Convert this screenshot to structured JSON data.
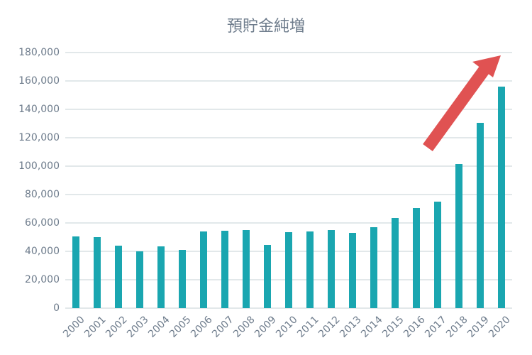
{
  "chart_data": {
    "type": "bar",
    "title": "預貯金純増",
    "categories": [
      "2000",
      "2001",
      "2002",
      "2003",
      "2004",
      "2005",
      "2006",
      "2007",
      "2008",
      "2009",
      "2010",
      "2011",
      "2012",
      "2013",
      "2014",
      "2015",
      "2016",
      "2017",
      "2018",
      "2019",
      "2020"
    ],
    "values": [
      50500,
      50000,
      44000,
      40000,
      43500,
      41000,
      54000,
      54500,
      55000,
      44500,
      53500,
      54000,
      55000,
      53000,
      57000,
      63500,
      70500,
      75000,
      101500,
      130500,
      156000
    ],
    "color": "#1aa6b0",
    "ylim": [
      0,
      180000
    ],
    "yticks": [
      0,
      {
        "value": 20000,
        "label": "20,000"
      },
      {
        "value": 40000,
        "label": "40,000"
      },
      {
        "value": 60000,
        "label": "60,000"
      },
      {
        "value": 80000,
        "label": "80,000"
      },
      {
        "value": 100000,
        "label": "100,000"
      },
      {
        "value": 120000,
        "label": "120,000"
      },
      {
        "value": 140000,
        "label": "140,000"
      },
      {
        "value": 160000,
        "label": "160,000"
      },
      {
        "value": 180000,
        "label": "180,000"
      }
    ],
    "grid": true
  }
}
